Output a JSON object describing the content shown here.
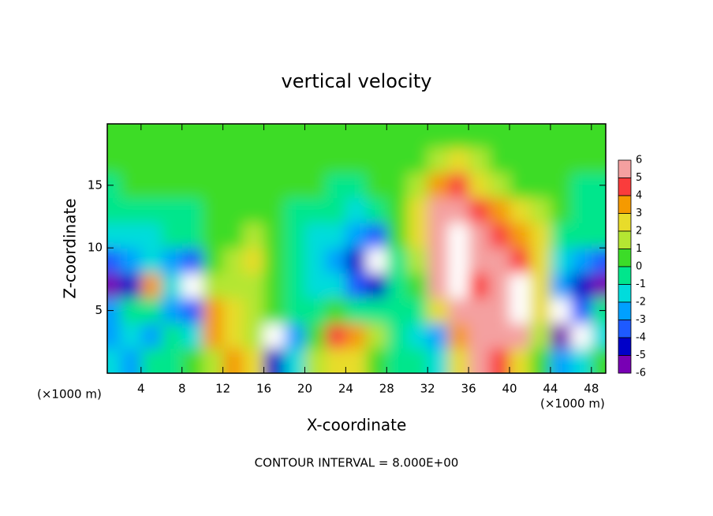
{
  "chart_data": {
    "type": "contour",
    "title": "vertical velocity",
    "xlabel": "X-coordinate",
    "ylabel": "Z-coordinate",
    "unit_label": "(×1000 m)",
    "footer": "CONTOUR INTERVAL = 8.000E+00",
    "xlim": [
      0.7,
      49.4
    ],
    "ylim": [
      0,
      19.9
    ],
    "xticks": [
      4,
      8,
      12,
      16,
      20,
      24,
      28,
      32,
      36,
      40,
      44,
      48
    ],
    "yticks": [
      5,
      10,
      15
    ],
    "colorbar": {
      "levels": [
        6,
        5,
        4,
        3,
        2,
        1,
        0,
        -1,
        -2,
        -3,
        -4,
        -5,
        -6
      ],
      "colors": [
        "#f4a0a0",
        "#fa3c3c",
        "#f59a00",
        "#e8dc2a",
        "#b4e632",
        "#3cdc28",
        "#00e68c",
        "#00dcdc",
        "#00a0ff",
        "#1e5aff",
        "#0000c8",
        "#7800b4"
      ],
      "over_color": "#ffffff"
    },
    "x": [
      1,
      3,
      5,
      7,
      9,
      11,
      13,
      15,
      17,
      19,
      21,
      23,
      25,
      27,
      29,
      31,
      33,
      35,
      37,
      39,
      41,
      43,
      45,
      47,
      49
    ],
    "y": [
      1,
      3,
      5,
      7,
      9,
      11,
      13,
      15,
      17,
      19
    ],
    "z": [
      [
        -2,
        -3,
        -1,
        -1,
        0,
        1,
        3,
        2,
        -5,
        -2,
        1,
        2,
        2,
        0,
        -1,
        -1,
        -2,
        2,
        5,
        4,
        2,
        0,
        -3,
        -2,
        0
      ],
      [
        -3,
        -2,
        -3,
        -1,
        -2,
        3,
        2,
        1,
        -7,
        -3,
        0,
        4,
        3,
        1,
        -1,
        -2,
        -3,
        3,
        6,
        5,
        6,
        1,
        -6,
        -7,
        -2
      ],
      [
        -3,
        -1,
        -1,
        -3,
        -4,
        3,
        2,
        1,
        0,
        -1,
        -1,
        0,
        -1,
        -1,
        -1,
        -1,
        2,
        5,
        5,
        5,
        7,
        2,
        -7,
        -4,
        -1
      ],
      [
        -6,
        -5,
        3,
        -2,
        -7,
        1,
        1,
        1,
        0,
        -1,
        -2,
        -2,
        -4,
        -5,
        -1,
        0,
        5,
        7,
        4,
        6,
        7,
        2,
        -3,
        -5,
        -6
      ],
      [
        -4,
        -3,
        -2,
        -3,
        -4,
        0,
        1,
        2,
        0,
        -1,
        -2,
        -3,
        -5,
        -7,
        -1,
        1,
        6,
        7,
        5,
        5,
        4,
        2,
        -2,
        -3,
        -4
      ],
      [
        -2,
        -1.5,
        -1.5,
        -1,
        -1,
        0,
        0.5,
        1,
        0,
        -1,
        -1.5,
        -2,
        -3,
        -4,
        0,
        2,
        6,
        7,
        5,
        4,
        3,
        2,
        -1,
        -1,
        -1
      ],
      [
        -1,
        -1,
        -1,
        -1,
        -0.5,
        0,
        0,
        0,
        0,
        -0.5,
        -1,
        -1,
        -2,
        -1,
        0.5,
        2,
        5,
        6,
        4,
        3,
        2,
        1,
        0,
        -0.5,
        -0.5
      ],
      [
        -0.5,
        0,
        0,
        0,
        0,
        0.5,
        0.5,
        0.5,
        0,
        0,
        0,
        -0.5,
        -0.5,
        0,
        0.5,
        1,
        3,
        4,
        2,
        1,
        0.5,
        0,
        0,
        -0.5,
        -1
      ],
      [
        0.5,
        0.5,
        0.5,
        0.5,
        0.5,
        0.5,
        0.5,
        0.5,
        0.5,
        0.5,
        0.5,
        0.5,
        0.5,
        0.5,
        0.5,
        0.5,
        1.5,
        2,
        1,
        0.5,
        0.5,
        0.5,
        0.5,
        0.5,
        0.5
      ],
      [
        0.5,
        0.5,
        0.5,
        0.5,
        0.5,
        0.5,
        0.5,
        0.5,
        0.5,
        0.5,
        0.5,
        0.5,
        0.5,
        0.5,
        0.5,
        0.5,
        0.5,
        0.5,
        0.5,
        0.5,
        0.5,
        0.5,
        0.5,
        0.5,
        0.5
      ]
    ]
  }
}
